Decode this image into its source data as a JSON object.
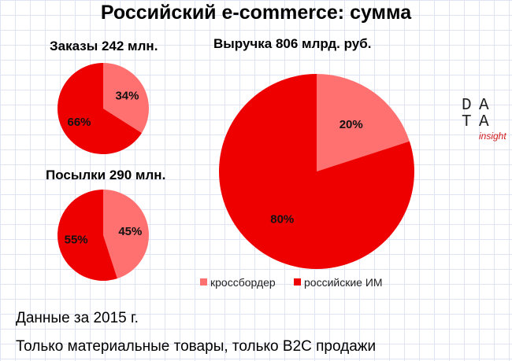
{
  "title": "Российский e-commerce: сумма",
  "colors": {
    "crossborder": "#ff7070",
    "russian": "#ee0000"
  },
  "chart_data": [
    {
      "type": "pie",
      "title": "Заказы 242 млн.",
      "slices": [
        {
          "category": "кроссбордер",
          "value": 34,
          "label": "34%"
        },
        {
          "category": "российские ИМ",
          "value": 66,
          "label": "66%"
        }
      ]
    },
    {
      "type": "pie",
      "title": "Посылки 290 млн.",
      "slices": [
        {
          "category": "кроссбордер",
          "value": 45,
          "label": "45%"
        },
        {
          "category": "российские ИМ",
          "value": 55,
          "label": "55%"
        }
      ]
    },
    {
      "type": "pie",
      "title": "Выручка 806 млрд. руб.",
      "slices": [
        {
          "category": "кроссбордер",
          "value": 20,
          "label": "20%"
        },
        {
          "category": "российские ИМ",
          "value": 80,
          "label": "80%"
        }
      ],
      "legend": {
        "position": "bottom",
        "entries": [
          "кроссбордер",
          "российские ИМ"
        ]
      }
    }
  ],
  "notes": {
    "period": "Данные за 2015 г.",
    "scope": "Только материальные товары, только B2C продажи"
  },
  "logo": {
    "letters": [
      "D",
      "A",
      "T",
      "A"
    ],
    "subtitle": "insight"
  }
}
